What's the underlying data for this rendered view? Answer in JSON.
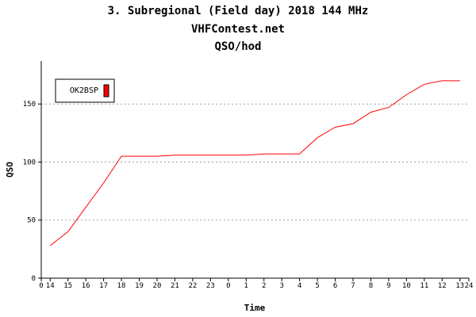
{
  "chart_data": {
    "type": "line",
    "title_lines": [
      "3. Subregional (Field day) 2018 144 MHz",
      "VHFContest.net",
      "QSO/hod"
    ],
    "xlabel": "Time",
    "ylabel": "QSO",
    "x_ticks": [
      "0",
      "14",
      "15",
      "16",
      "17",
      "18",
      "19",
      "20",
      "21",
      "22",
      "23",
      "0",
      "1",
      "2",
      "3",
      "4",
      "5",
      "6",
      "7",
      "8",
      "9",
      "10",
      "11",
      "12",
      "13",
      "24"
    ],
    "y_ticks": [
      0,
      50,
      100,
      150
    ],
    "ylim": [
      0,
      187
    ],
    "xlim_hours": [
      0,
      24
    ],
    "grid": true,
    "legend_position": "top-left",
    "series": [
      {
        "name": "OK2BSP",
        "color": "#ff0000",
        "x": [
          "14:30",
          "15:30",
          "16:30",
          "17:30",
          "18:30",
          "19:30",
          "20:30",
          "21:30",
          "22:30",
          "23:30",
          "00:30",
          "01:30",
          "02:30",
          "03:30",
          "04:30",
          "05:30",
          "06:30",
          "07:30",
          "08:30",
          "09:30",
          "10:30",
          "11:30",
          "12:30",
          "13:30"
        ],
        "values": [
          28,
          40,
          61,
          82,
          105,
          105,
          105,
          106,
          106,
          106,
          106,
          106,
          107,
          107,
          107,
          121,
          130,
          133,
          143,
          147,
          158,
          167,
          170,
          170
        ]
      }
    ]
  }
}
